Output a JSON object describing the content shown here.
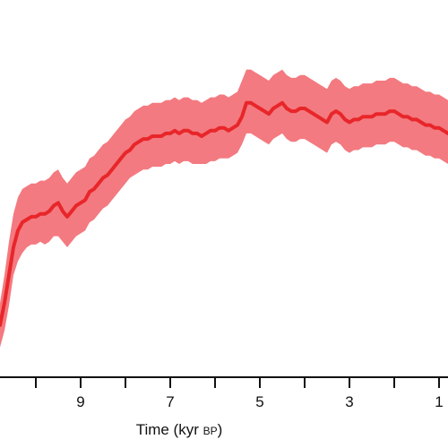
{
  "chart_data": {
    "type": "area",
    "xlabel": "Time (kyr BP)",
    "xlabel_parts": {
      "main": "Time (kyr ",
      "small": "BP",
      "close": ")"
    },
    "x_reversed": true,
    "xlim": [
      10.8,
      0.8
    ],
    "ylim": [
      0,
      1
    ],
    "y_axis_visible": false,
    "grid": false,
    "legend": "none",
    "tick_values": [
      10,
      9,
      8,
      7,
      6,
      5,
      4,
      3,
      2,
      1
    ],
    "labeled_ticks": [
      9,
      7,
      5,
      3,
      1
    ],
    "tick_labels": [
      "9",
      "7",
      "5",
      "3",
      "1"
    ],
    "colors": {
      "line": "#e8262a",
      "band": "#f37a80",
      "axis": "#111111"
    },
    "series": [
      {
        "x": [
          10.8,
          10.7,
          10.6,
          10.5,
          10.4,
          10.3,
          10.2,
          10.1,
          10.0,
          9.9,
          9.8,
          9.7,
          9.6,
          9.5,
          9.4,
          9.3,
          9.2,
          9.1,
          9.0,
          8.9,
          8.8,
          8.7,
          8.6,
          8.5,
          8.4,
          8.3,
          8.2,
          8.1,
          8.0,
          7.9,
          7.8,
          7.7,
          7.6,
          7.5,
          7.4,
          7.3,
          7.2,
          7.1,
          7.0,
          6.9,
          6.8,
          6.7,
          6.6,
          6.5,
          6.4,
          6.3,
          6.2,
          6.1,
          6.0,
          5.9,
          5.8,
          5.7,
          5.6,
          5.5,
          5.4,
          5.3,
          5.2,
          5.1,
          5.0,
          4.9,
          4.8,
          4.7,
          4.6,
          4.5,
          4.4,
          4.3,
          4.2,
          4.1,
          4.0,
          3.9,
          3.8,
          3.7,
          3.6,
          3.5,
          3.4,
          3.3,
          3.2,
          3.1,
          3.0,
          2.9,
          2.8,
          2.7,
          2.6,
          2.5,
          2.4,
          2.3,
          2.2,
          2.1,
          2.0,
          1.9,
          1.8,
          1.7,
          1.6,
          1.5,
          1.4,
          1.3,
          1.2,
          1.1,
          1.0,
          0.9,
          0.8
        ],
        "values": [
          0.12,
          0.2,
          0.3,
          0.4,
          0.46,
          0.49,
          0.5,
          0.51,
          0.51,
          0.52,
          0.52,
          0.53,
          0.55,
          0.56,
          0.53,
          0.51,
          0.53,
          0.55,
          0.56,
          0.57,
          0.6,
          0.61,
          0.63,
          0.65,
          0.66,
          0.68,
          0.7,
          0.72,
          0.74,
          0.75,
          0.77,
          0.78,
          0.79,
          0.79,
          0.8,
          0.8,
          0.8,
          0.81,
          0.81,
          0.82,
          0.81,
          0.82,
          0.82,
          0.81,
          0.81,
          0.8,
          0.81,
          0.82,
          0.82,
          0.83,
          0.83,
          0.82,
          0.83,
          0.84,
          0.87,
          0.92,
          0.92,
          0.91,
          0.9,
          0.89,
          0.88,
          0.9,
          0.91,
          0.92,
          0.9,
          0.89,
          0.89,
          0.9,
          0.9,
          0.89,
          0.88,
          0.87,
          0.86,
          0.85,
          0.88,
          0.89,
          0.88,
          0.86,
          0.85,
          0.86,
          0.86,
          0.87,
          0.87,
          0.87,
          0.88,
          0.88,
          0.88,
          0.89,
          0.89,
          0.88,
          0.87,
          0.87,
          0.86,
          0.86,
          0.85,
          0.84,
          0.84,
          0.83,
          0.83,
          0.82,
          0.81
        ],
        "lower": [
          0.04,
          0.1,
          0.19,
          0.3,
          0.35,
          0.38,
          0.4,
          0.41,
          0.41,
          0.42,
          0.41,
          0.42,
          0.44,
          0.44,
          0.42,
          0.4,
          0.42,
          0.44,
          0.45,
          0.46,
          0.49,
          0.5,
          0.52,
          0.54,
          0.55,
          0.57,
          0.59,
          0.61,
          0.63,
          0.65,
          0.66,
          0.67,
          0.68,
          0.68,
          0.69,
          0.69,
          0.69,
          0.7,
          0.7,
          0.71,
          0.7,
          0.71,
          0.71,
          0.7,
          0.7,
          0.7,
          0.7,
          0.71,
          0.71,
          0.72,
          0.72,
          0.72,
          0.73,
          0.74,
          0.77,
          0.81,
          0.81,
          0.8,
          0.79,
          0.78,
          0.77,
          0.79,
          0.8,
          0.81,
          0.79,
          0.78,
          0.78,
          0.79,
          0.79,
          0.78,
          0.77,
          0.76,
          0.75,
          0.74,
          0.77,
          0.78,
          0.77,
          0.75,
          0.74,
          0.75,
          0.75,
          0.76,
          0.76,
          0.76,
          0.77,
          0.77,
          0.77,
          0.78,
          0.78,
          0.77,
          0.76,
          0.76,
          0.75,
          0.75,
          0.74,
          0.73,
          0.73,
          0.72,
          0.72,
          0.71,
          0.7
        ],
        "upper": [
          0.2,
          0.3,
          0.42,
          0.52,
          0.58,
          0.61,
          0.62,
          0.63,
          0.63,
          0.64,
          0.64,
          0.65,
          0.67,
          0.68,
          0.65,
          0.63,
          0.65,
          0.67,
          0.68,
          0.69,
          0.72,
          0.73,
          0.75,
          0.77,
          0.78,
          0.8,
          0.82,
          0.84,
          0.86,
          0.87,
          0.89,
          0.9,
          0.91,
          0.91,
          0.92,
          0.92,
          0.92,
          0.93,
          0.93,
          0.94,
          0.93,
          0.94,
          0.94,
          0.93,
          0.93,
          0.92,
          0.93,
          0.94,
          0.94,
          0.95,
          0.95,
          0.94,
          0.95,
          0.96,
          1.0,
          1.04,
          1.04,
          1.03,
          1.02,
          1.01,
          1.0,
          1.02,
          1.03,
          1.04,
          1.02,
          1.01,
          1.01,
          1.02,
          1.02,
          1.01,
          1.0,
          0.99,
          0.98,
          0.97,
          1.0,
          1.01,
          1.0,
          0.98,
          0.97,
          0.98,
          0.98,
          0.99,
          0.99,
          0.99,
          1.0,
          1.0,
          1.0,
          1.01,
          1.01,
          1.0,
          0.99,
          0.99,
          0.98,
          0.98,
          0.97,
          0.96,
          0.96,
          0.95,
          0.95,
          0.94,
          0.93
        ]
      }
    ]
  }
}
